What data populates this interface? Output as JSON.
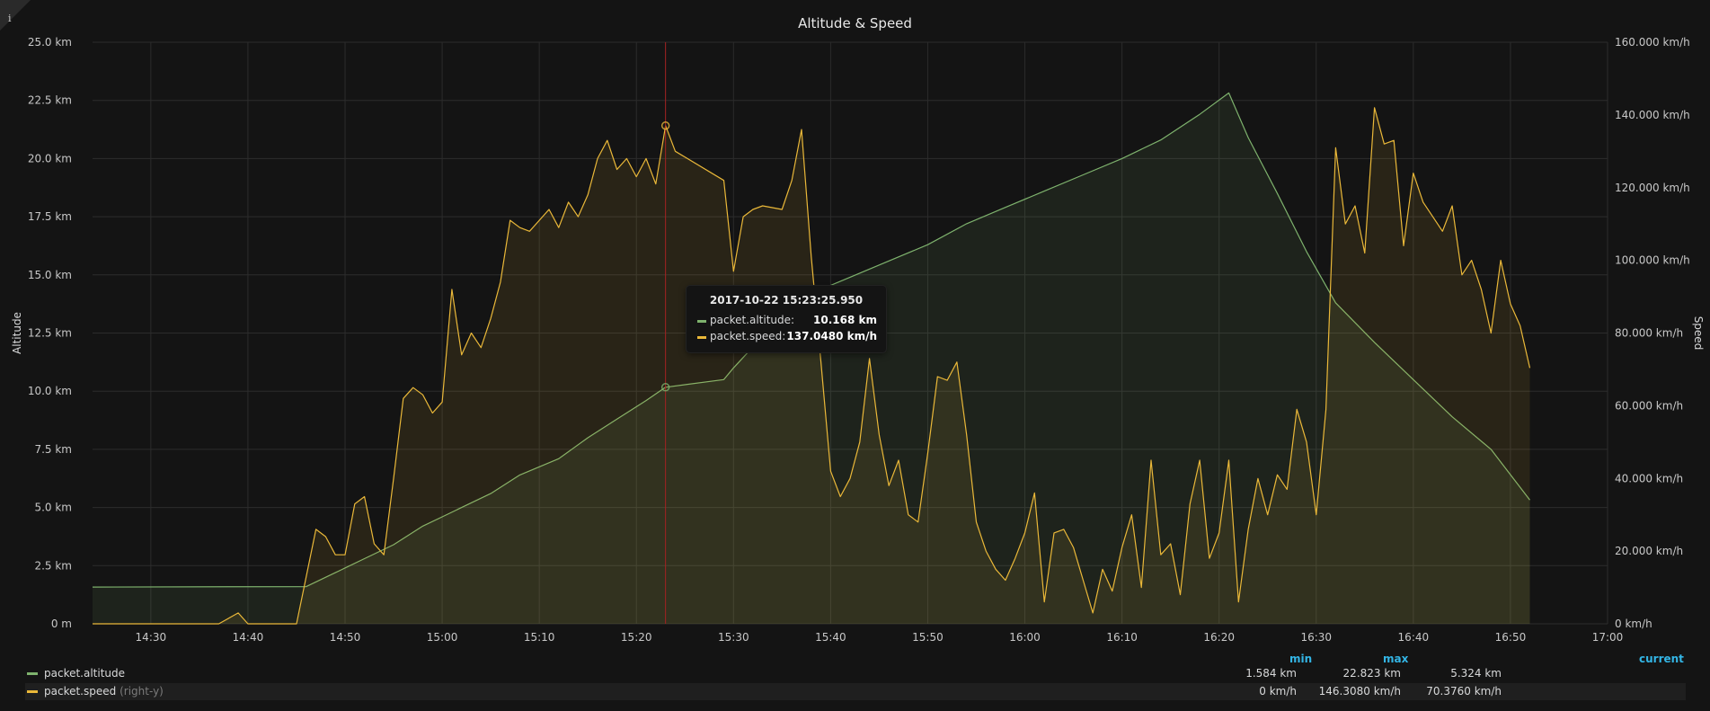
{
  "panel": {
    "title": "Altitude & Speed",
    "info_icon": "i"
  },
  "colors": {
    "altitude": "#7eb26d",
    "speed": "#eab839",
    "crosshair": "#a52222",
    "legend_header": "#33b5e5",
    "grid": "#2c2c2c"
  },
  "chart_data": {
    "type": "line",
    "title": "Altitude & Speed",
    "x_axis": {
      "range": [
        "14:24",
        "17:00"
      ],
      "tick_labels": [
        "14:30",
        "14:40",
        "14:50",
        "15:00",
        "15:10",
        "15:20",
        "15:30",
        "15:40",
        "15:50",
        "16:00",
        "16:10",
        "16:20",
        "16:30",
        "16:40",
        "16:50",
        "17:00"
      ]
    },
    "y_left": {
      "label": "Altitude",
      "unit": "km",
      "range": [
        0,
        25
      ],
      "tick_labels": [
        "0 m",
        "2.5 km",
        "5.0 km",
        "7.5 km",
        "10.0 km",
        "12.5 km",
        "15.0 km",
        "17.5 km",
        "20.0 km",
        "22.5 km",
        "25.0 km"
      ]
    },
    "y_right": {
      "label": "Speed",
      "unit": "km/h",
      "range": [
        0,
        160
      ],
      "tick_labels": [
        "0 km/h",
        "20.000 km/h",
        "40.000 km/h",
        "60.000 km/h",
        "80.000 km/h",
        "100.000 km/h",
        "120.000 km/h",
        "140.000 km/h",
        "160.000 km/h"
      ]
    },
    "grid": true,
    "fill": true,
    "series": [
      {
        "name": "packet.altitude",
        "axis": "left",
        "points": [
          [
            "14:24",
            1.58
          ],
          [
            "14:46",
            1.6
          ],
          [
            "14:49",
            2.2
          ],
          [
            "14:52",
            2.8
          ],
          [
            "14:55",
            3.4
          ],
          [
            "14:58",
            4.2
          ],
          [
            "15:00",
            4.6
          ],
          [
            "15:02",
            5.0
          ],
          [
            "15:05",
            5.6
          ],
          [
            "15:08",
            6.4
          ],
          [
            "15:12",
            7.1
          ],
          [
            "15:15",
            8.0
          ],
          [
            "15:18",
            8.8
          ],
          [
            "15:21",
            9.6
          ],
          [
            "15:23",
            10.17
          ],
          [
            "15:29",
            10.5
          ],
          [
            "15:30",
            11.0
          ],
          [
            "15:34",
            12.8
          ],
          [
            "15:38",
            14.2
          ],
          [
            "15:42",
            14.9
          ],
          [
            "15:46",
            15.6
          ],
          [
            "15:50",
            16.3
          ],
          [
            "15:54",
            17.2
          ],
          [
            "15:58",
            17.9
          ],
          [
            "16:02",
            18.6
          ],
          [
            "16:06",
            19.3
          ],
          [
            "16:10",
            20.0
          ],
          [
            "16:14",
            20.8
          ],
          [
            "16:18",
            21.9
          ],
          [
            "16:21",
            22.82
          ],
          [
            "16:23",
            20.9
          ],
          [
            "16:26",
            18.5
          ],
          [
            "16:29",
            16.0
          ],
          [
            "16:32",
            13.8
          ],
          [
            "16:36",
            12.1
          ],
          [
            "16:40",
            10.5
          ],
          [
            "16:44",
            8.9
          ],
          [
            "16:48",
            7.5
          ],
          [
            "16:52",
            5.32
          ]
        ]
      },
      {
        "name": "packet.speed",
        "axis": "right",
        "points": [
          [
            "14:24",
            0
          ],
          [
            "14:37",
            0
          ],
          [
            "14:39",
            3
          ],
          [
            "14:40",
            0
          ],
          [
            "14:45",
            0
          ],
          [
            "14:47",
            26
          ],
          [
            "14:48",
            24
          ],
          [
            "14:49",
            19
          ],
          [
            "14:50",
            19
          ],
          [
            "14:51",
            33
          ],
          [
            "14:52",
            35
          ],
          [
            "14:53",
            22
          ],
          [
            "14:54",
            19
          ],
          [
            "14:55",
            40
          ],
          [
            "14:56",
            62
          ],
          [
            "14:57",
            65
          ],
          [
            "14:58",
            63
          ],
          [
            "14:59",
            58
          ],
          [
            "15:00",
            61
          ],
          [
            "15:01",
            92
          ],
          [
            "15:02",
            74
          ],
          [
            "15:03",
            80
          ],
          [
            "15:04",
            76
          ],
          [
            "15:05",
            84
          ],
          [
            "15:06",
            94
          ],
          [
            "15:07",
            111
          ],
          [
            "15:08",
            109
          ],
          [
            "15:09",
            108
          ],
          [
            "15:10",
            111
          ],
          [
            "15:11",
            114
          ],
          [
            "15:12",
            109
          ],
          [
            "15:13",
            116
          ],
          [
            "15:14",
            112
          ],
          [
            "15:15",
            118
          ],
          [
            "15:16",
            128
          ],
          [
            "15:17",
            133
          ],
          [
            "15:18",
            125
          ],
          [
            "15:19",
            128
          ],
          [
            "15:20",
            123
          ],
          [
            "15:21",
            128
          ],
          [
            "15:22",
            121
          ],
          [
            "15:23",
            137.05
          ],
          [
            "15:24",
            130
          ],
          [
            "15:29",
            122
          ],
          [
            "15:30",
            97
          ],
          [
            "15:31",
            112
          ],
          [
            "15:32",
            114
          ],
          [
            "15:33",
            115
          ],
          [
            "15:35",
            114
          ],
          [
            "15:36",
            122
          ],
          [
            "15:37",
            136
          ],
          [
            "15:38",
            101
          ],
          [
            "15:39",
            72
          ],
          [
            "15:40",
            42
          ],
          [
            "15:41",
            35
          ],
          [
            "15:42",
            40
          ],
          [
            "15:43",
            50
          ],
          [
            "15:44",
            73
          ],
          [
            "15:45",
            52
          ],
          [
            "15:46",
            38
          ],
          [
            "15:47",
            45
          ],
          [
            "15:48",
            30
          ],
          [
            "15:49",
            28
          ],
          [
            "15:50",
            47
          ],
          [
            "15:51",
            68
          ],
          [
            "15:52",
            67
          ],
          [
            "15:53",
            72
          ],
          [
            "15:54",
            52
          ],
          [
            "15:55",
            28
          ],
          [
            "15:56",
            20
          ],
          [
            "15:57",
            15
          ],
          [
            "15:58",
            12
          ],
          [
            "15:59",
            18
          ],
          [
            "16:00",
            25
          ],
          [
            "16:01",
            36
          ],
          [
            "16:02",
            6
          ],
          [
            "16:03",
            25
          ],
          [
            "16:04",
            26
          ],
          [
            "16:05",
            21
          ],
          [
            "16:06",
            12
          ],
          [
            "16:07",
            3
          ],
          [
            "16:08",
            15
          ],
          [
            "16:09",
            9
          ],
          [
            "16:10",
            21
          ],
          [
            "16:11",
            30
          ],
          [
            "16:12",
            10
          ],
          [
            "16:13",
            45
          ],
          [
            "16:14",
            19
          ],
          [
            "16:15",
            22
          ],
          [
            "16:16",
            8
          ],
          [
            "16:17",
            33
          ],
          [
            "16:18",
            45
          ],
          [
            "16:19",
            18
          ],
          [
            "16:20",
            25
          ],
          [
            "16:21",
            45
          ],
          [
            "16:22",
            6
          ],
          [
            "16:23",
            26
          ],
          [
            "16:24",
            40
          ],
          [
            "16:25",
            30
          ],
          [
            "16:26",
            41
          ],
          [
            "16:27",
            37
          ],
          [
            "16:28",
            59
          ],
          [
            "16:29",
            50
          ],
          [
            "16:30",
            30
          ],
          [
            "16:31",
            59
          ],
          [
            "16:32",
            131
          ],
          [
            "16:33",
            110
          ],
          [
            "16:34",
            115
          ],
          [
            "16:35",
            102
          ],
          [
            "16:36",
            142
          ],
          [
            "16:37",
            132
          ],
          [
            "16:38",
            133
          ],
          [
            "16:39",
            104
          ],
          [
            "16:40",
            124
          ],
          [
            "16:41",
            116
          ],
          [
            "16:42",
            112
          ],
          [
            "16:43",
            108
          ],
          [
            "16:44",
            115
          ],
          [
            "16:45",
            96
          ],
          [
            "16:46",
            100
          ],
          [
            "16:47",
            92
          ],
          [
            "16:48",
            80
          ],
          [
            "16:49",
            100
          ],
          [
            "16:50",
            88
          ],
          [
            "16:51",
            82
          ],
          [
            "16:52",
            70.38
          ]
        ]
      }
    ],
    "crosshair": {
      "time": "15:23"
    },
    "tooltip": {
      "time": "2017-10-22 15:23:25.950",
      "rows": [
        {
          "name": "packet.altitude:",
          "value": "10.168 km"
        },
        {
          "name": "packet.speed:",
          "value": "137.0480 km/h"
        }
      ]
    },
    "legend": {
      "headers": [
        "min",
        "max",
        "current"
      ],
      "rows": [
        {
          "name": "packet.altitude",
          "axis_note": "",
          "min": "1.584 km",
          "max": "22.823 km",
          "current": "5.324 km"
        },
        {
          "name": "packet.speed",
          "axis_note": "(right-y)",
          "min": "0 km/h",
          "max": "146.3080 km/h",
          "current": "70.3760 km/h"
        }
      ]
    }
  }
}
